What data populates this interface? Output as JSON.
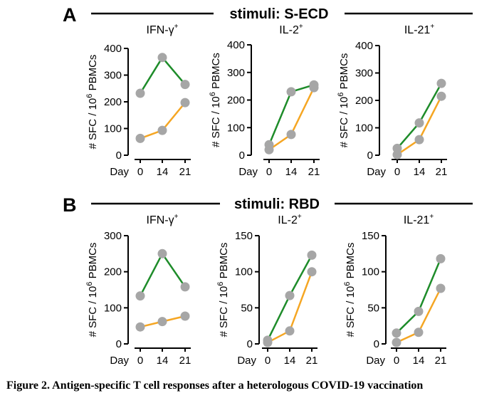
{
  "figure": {
    "caption": "Figure 2. Antigen-specific T cell responses after a heterologous COVID-19 vaccination"
  },
  "panels": [
    {
      "letter": "A",
      "stimuli_label": "stimuli: S-ECD"
    },
    {
      "letter": "B",
      "stimuli_label": "stimuli: RBD"
    }
  ],
  "colors": {
    "green_series": "#1e8c2a",
    "orange_series": "#f5a623",
    "point": "#a6a6a6",
    "axis": "#000000"
  },
  "chart_data": [
    {
      "type": "line",
      "panel": "A",
      "title": "IFN-γ⁺",
      "ylabel": "# SFC / 10⁶ PBMCs",
      "xlabel": "Day",
      "categories": [
        "0",
        "14",
        "21"
      ],
      "ylim": [
        0,
        400
      ],
      "yticks": [
        0,
        100,
        200,
        300,
        400
      ],
      "series": [
        {
          "values": [
            232,
            366,
            265
          ],
          "color": "green"
        },
        {
          "values": [
            63,
            93,
            197
          ],
          "color": "orange"
        }
      ]
    },
    {
      "type": "line",
      "panel": "A",
      "title": "IL-2⁺",
      "ylabel": "# SFC / 10⁶ PBMCs",
      "xlabel": "Day",
      "categories": [
        "0",
        "14",
        "21"
      ],
      "ylim": [
        0,
        400
      ],
      "yticks": [
        0,
        100,
        200,
        300,
        400
      ],
      "series": [
        {
          "values": [
            38,
            230,
            255
          ],
          "color": "green"
        },
        {
          "values": [
            20,
            75,
            245
          ],
          "color": "orange"
        }
      ]
    },
    {
      "type": "line",
      "panel": "A",
      "title": "IL-21⁺",
      "ylabel": "# SFC / 10⁶ PBMCs",
      "xlabel": "Day",
      "categories": [
        "0",
        "14",
        "21"
      ],
      "ylim": [
        0,
        400
      ],
      "yticks": [
        0,
        100,
        200,
        300,
        400
      ],
      "series": [
        {
          "values": [
            25,
            118,
            262
          ],
          "color": "green"
        },
        {
          "values": [
            2,
            57,
            215
          ],
          "color": "orange"
        }
      ]
    },
    {
      "type": "line",
      "panel": "B",
      "title": "IFN-γ⁺",
      "ylabel": "# SFC / 10⁶ PBMCs",
      "xlabel": "Day",
      "categories": [
        "0",
        "14",
        "21"
      ],
      "ylim": [
        0,
        300
      ],
      "yticks": [
        0,
        100,
        200,
        300
      ],
      "series": [
        {
          "values": [
            133,
            250,
            158
          ],
          "color": "green"
        },
        {
          "values": [
            47,
            62,
            77
          ],
          "color": "orange"
        }
      ]
    },
    {
      "type": "line",
      "panel": "B",
      "title": "IL-2⁺",
      "ylabel": "# SFC / 10⁶ PBMCs",
      "xlabel": "Day",
      "categories": [
        "0",
        "14",
        "21"
      ],
      "ylim": [
        0,
        150
      ],
      "yticks": [
        0,
        50,
        100,
        150
      ],
      "series": [
        {
          "values": [
            5,
            67,
            123
          ],
          "color": "green"
        },
        {
          "values": [
            2,
            18,
            100
          ],
          "color": "orange"
        }
      ]
    },
    {
      "type": "line",
      "panel": "B",
      "title": "IL-21⁺",
      "ylabel": "# SFC / 10⁶ PBMCs",
      "xlabel": "Day",
      "categories": [
        "0",
        "14",
        "21"
      ],
      "ylim": [
        0,
        150
      ],
      "yticks": [
        0,
        50,
        100,
        150
      ],
      "series": [
        {
          "values": [
            15,
            45,
            118
          ],
          "color": "green"
        },
        {
          "values": [
            2,
            16,
            77
          ],
          "color": "orange"
        }
      ]
    }
  ]
}
